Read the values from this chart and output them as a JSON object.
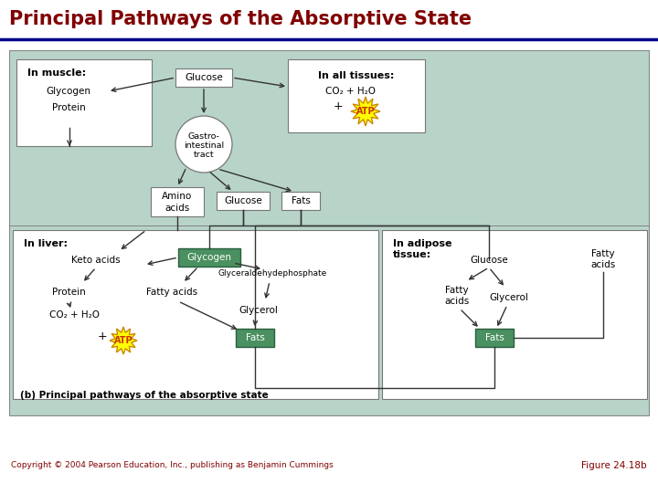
{
  "title": "Principal Pathways of the Absorptive State",
  "title_color": "#800000",
  "title_bg": "#ffffff",
  "title_line_color": "#00008B",
  "bg_color": "#b8d4c8",
  "copyright": "Copyright © 2004 Pearson Education, Inc., publishing as Benjamin Cummings",
  "figure_ref": "Figure 24.18b",
  "green_box_color": "#4a9060",
  "green_box_edge": "#2a6040",
  "white_box_color": "#ffffff",
  "box_edge": "#777777",
  "text_color": "#000000",
  "arrow_color": "#333333"
}
